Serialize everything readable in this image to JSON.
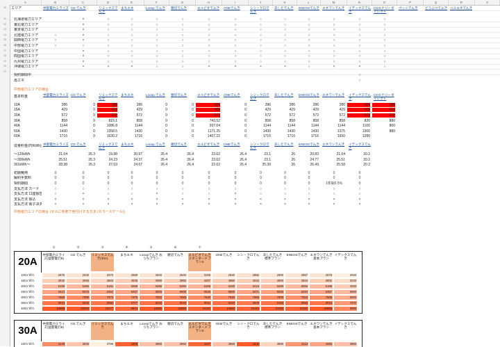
{
  "columns": [
    "A",
    "B",
    "C",
    "D",
    "E",
    "F",
    "G",
    "H",
    "I",
    "J",
    "K",
    "L",
    "M",
    "N",
    "O",
    "P",
    "Q",
    "R",
    "S"
  ],
  "area_section": {
    "headers": [
      "エリア",
      "中部電力ミライズ",
      "CD でんき",
      "リミックスでんき",
      "まちエネ",
      "Looop でんき",
      "親切でんき",
      "エルピオでんき",
      "ONEでんき",
      "シン・クロでんき",
      "あしたでんき",
      "ENEOSでんき",
      "エネワンでんき",
      "イデックスでんき",
      "CDエナジーダイレクト",
      "ペットでんき",
      "どうぶつでんき",
      "ハルエネでんき"
    ],
    "rows": [
      {
        "area": "北海道電力エリア",
        "marks": [
          "",
          "×",
          "○",
          "○",
          "○",
          "○",
          "○",
          "○",
          "○",
          "○",
          "○",
          "○",
          "○",
          "○",
          "",
          "",
          ""
        ]
      },
      {
        "area": "東北電力エリア",
        "marks": [
          "",
          "×",
          "○",
          "○",
          "○",
          "○",
          "○",
          "○",
          "○",
          "○",
          "○",
          "○",
          "○",
          "○",
          "",
          "",
          ""
        ]
      },
      {
        "area": "東京電力エリア",
        "marks": [
          "",
          "×",
          "○",
          "○",
          "○",
          "○",
          "○",
          "○",
          "○",
          "○",
          "○",
          "○",
          "○",
          "○",
          "",
          "",
          ""
        ]
      },
      {
        "area": "北陸電力エリア",
        "marks": [
          "○",
          "×",
          "○",
          "○",
          "○",
          "○",
          "○",
          "○",
          "○",
          "○",
          "○",
          "○",
          "○",
          "○",
          "",
          "",
          ""
        ]
      },
      {
        "area": "関西電力エリア",
        "marks": [
          "○",
          "×",
          "○",
          "○",
          "○",
          "○",
          "○",
          "○",
          "○",
          "○",
          "○",
          "○",
          "○",
          "○",
          "",
          "",
          ""
        ]
      },
      {
        "area": "中部電力エリア",
        "marks": [
          "○",
          "○",
          "○",
          "○",
          "○",
          "○",
          "○",
          "○",
          "○",
          "○",
          "○",
          "○",
          "○",
          "○",
          "",
          "",
          ""
        ]
      },
      {
        "area": "中国電力エリア",
        "marks": [
          "",
          "×",
          "○",
          "○",
          "○",
          "○",
          "○",
          "○",
          "○",
          "○",
          "○",
          "○",
          "○",
          "○",
          "",
          "",
          ""
        ]
      },
      {
        "area": "四国電力エリア",
        "marks": [
          "",
          "×",
          "○",
          "○",
          "○",
          "○",
          "○",
          "○",
          "○",
          "○",
          "○",
          "○",
          "○",
          "○",
          "",
          "",
          ""
        ]
      },
      {
        "area": "九州電力エリア",
        "marks": [
          "",
          "×",
          "○",
          "○",
          "○",
          "○",
          "○",
          "○",
          "○",
          "○",
          "○",
          "○",
          "○",
          "○",
          "",
          "",
          ""
        ]
      },
      {
        "area": "沖縄電力エリア",
        "marks": [
          "",
          "×",
          "×",
          "×",
          "○",
          "○",
          "×",
          "×",
          "×",
          "×",
          "○",
          "×",
          "×",
          "○",
          "",
          "",
          ""
        ]
      }
    ],
    "extra": [
      {
        "label": "契約期間中",
        "mark": "○"
      },
      {
        "label": "再エネ",
        "mark": "○"
      }
    ]
  },
  "basic_fee": {
    "title": "中部電力エリアの場合",
    "label": "基本料金",
    "rows": [
      {
        "amp": "10A",
        "vals": [
          "286",
          "0",
          "286",
          "286",
          "0",
          "0",
          "286",
          "0",
          "286",
          "286",
          "286",
          "286",
          "286",
          "286"
        ],
        "red": [
          2,
          6,
          12,
          13
        ]
      },
      {
        "amp": "15A",
        "vals": [
          "429",
          "0",
          "429",
          "429",
          "0",
          "0",
          "429",
          "0",
          "429",
          "429",
          "429",
          "429",
          "429",
          "429"
        ],
        "red": [
          2,
          6,
          12,
          13
        ]
      },
      {
        "amp": "20A",
        "vals": [
          "572",
          "0",
          "572",
          "572",
          "0",
          "0",
          "572",
          "0",
          "572",
          "572",
          "572",
          "572",
          "572",
          "572"
        ],
        "red": [
          2,
          6,
          12,
          13
        ]
      },
      {
        "amp": "30A",
        "vals": [
          "858",
          "0",
          "815.1",
          "858",
          "0",
          "0",
          "743.52",
          "0",
          "858",
          "858",
          "858",
          "858",
          "820",
          "880"
        ],
        "red": []
      },
      {
        "amp": "40A",
        "vals": [
          "1144",
          "0",
          "1086.8",
          "1144",
          "0",
          "0",
          "937.04",
          "0",
          "1144",
          "1144",
          "1144",
          "1144",
          "1100",
          "800"
        ],
        "red": []
      },
      {
        "amp": "50A",
        "vals": [
          "1430",
          "0",
          "1358.5",
          "1430",
          "0",
          "0",
          "1171.25",
          "0",
          "1430",
          "1430",
          "1430",
          "1375",
          "1000",
          "880"
        ],
        "red": []
      },
      {
        "amp": "60A",
        "vals": [
          "1716",
          "0",
          "1630.2",
          "1716",
          "0",
          "0",
          "1407.22",
          "0",
          "1716",
          "1716",
          "1716",
          "1650",
          "1280",
          ""
        ],
        "red": []
      }
    ]
  },
  "unit_price": {
    "label": "従量料金(円/kWh)",
    "rows": [
      {
        "label": "〜120kWh",
        "vals": [
          "21.04",
          "26.3",
          "19.98",
          "20.97",
          "26.4",
          "26.4",
          "23.62",
          "26.4",
          "23.1",
          "26",
          "20.83",
          "21.04",
          "20.2"
        ]
      },
      {
        "label": "〜300kWh",
        "vals": [
          "25.51",
          "26.3",
          "24.23",
          "24.37",
          "26.4",
          "26.4",
          "23.62",
          "26.4",
          "23.1",
          "26",
          "24.77",
          "25.51",
          "20.2"
        ]
      },
      {
        "label": "301kWh〜",
        "vals": [
          "28.38",
          "26.3",
          "27.03",
          "24.67",
          "26.4",
          "26.4",
          "23.62",
          "26.4",
          "25.39",
          "26",
          "26.49",
          "25.58",
          "20.2"
        ]
      }
    ]
  },
  "misc_rows": [
    {
      "label": "初期費用",
      "vals": [
        "0",
        "0",
        "0",
        "0",
        "0",
        "0",
        "0",
        "0",
        "0",
        "0",
        "0",
        "0",
        "0"
      ]
    },
    {
      "label": "解約手数料",
      "vals": [
        "0",
        "0",
        "0",
        "0",
        "0",
        "0",
        "0",
        "0",
        "0",
        "0",
        "0",
        "0",
        "0"
      ]
    },
    {
      "label": "契約期間",
      "vals": [
        "0",
        "0",
        "0",
        "0",
        "0",
        "0",
        "0",
        "0",
        "0",
        "0",
        "0",
        "1年間0.5%",
        "0"
      ]
    },
    {
      "label": "支払方法 カード",
      "vals": [
        "○",
        "○",
        "○",
        "○",
        "○",
        "○",
        "○",
        "○",
        "○",
        "○",
        "○",
        "○",
        "○"
      ]
    },
    {
      "label": "支払方法 口座振替",
      "vals": [
        "○",
        "×",
        "○",
        "○",
        "×",
        "○",
        "○",
        "×",
        "○",
        "○",
        "○",
        "○",
        "○"
      ]
    },
    {
      "label": "支払方法 振込",
      "vals": [
        "×",
        "×",
        "×",
        "×",
        "×",
        "×",
        "×",
        "×",
        "×",
        "×",
        "×",
        "×",
        "×"
      ]
    },
    {
      "label": "支払方法 電子決済",
      "vals": [
        "×",
        "×",
        "×",
        "×",
        "×",
        "×",
        "×",
        "×",
        "×",
        "×",
        "×",
        "×",
        "×"
      ]
    }
  ],
  "scale_note": "中部電力エリアの場合",
  "scale_note2": "(セルに色数で色付けする方法 (カラースケール))",
  "panel20": {
    "amp": "20A",
    "headers": [
      "中部電力ミライズ(従量電灯B)",
      "CD でんき",
      "リミックスでんき(30A)",
      "まちエネ",
      "Looopでんき おうちプラン",
      "親切でんき",
      "エルピオでんき スタンダードプランS",
      "ONEでんき",
      "シン・クロでんき",
      "あしたでんき 標準プラン",
      "ENEOSでんき",
      "エネワンでんき 基本プラン",
      "イデックスでんき"
    ],
    "numbers": [
      "①",
      "②",
      "③",
      "④",
      "⑤",
      "⑥",
      "⑦"
    ],
    "rows": [
      {
        "label": "100ｋＷｈ",
        "vals": [
          "2676",
          "2630",
          "2570",
          "2669",
          "2640",
          "2640",
          "3159",
          "2640",
          "2882",
          "2600",
          "2657",
          "2676",
          "2020"
        ]
      },
      {
        "label": "150ｋＷｈ",
        "vals": [
          "3932",
          "3945",
          "3583",
          "4049",
          "3960",
          "3960",
          "4287",
          "3960",
          "4042",
          "3900",
          "3834",
          "3932",
          "3030"
        ]
      },
      {
        "label": "200ｋＷｈ",
        "vals": [
          "5198",
          "5260",
          "5151",
          "5058",
          "5280",
          "5280",
          "5468",
          "5280",
          "5216",
          "5200",
          "5056",
          "5198",
          "4040"
        ]
      },
      {
        "label": "250ｋＷｈ",
        "vals": [
          "6413",
          "6575",
          "6362",
          "6267",
          "6600",
          "6600",
          "6649",
          "6600",
          "6371",
          "6500",
          "6294",
          "6467",
          "5050"
        ]
      },
      {
        "label": "300ｋＷｈ",
        "vals": [
          "7668",
          "7890",
          "7574",
          "7475",
          "7920",
          "7920",
          "7830",
          "7920",
          "7566",
          "7800",
          "7533",
          "7668",
          "6060"
        ]
      },
      {
        "label": "350ｋＷｈ",
        "vals": [
          "9010",
          "9205",
          "8950",
          "8707",
          "9240",
          "9240",
          "9011",
          "9240",
          "8808",
          "9100",
          "8856",
          "9010",
          "7070"
        ]
      },
      {
        "label": "400ｋＷｈ",
        "vals": [
          "10659",
          "10520",
          "10277",
          "9942",
          "10560",
          "10560",
          "10192",
          "10560",
          "10153",
          "10400",
          "10182",
          "10659",
          "8080"
        ]
      }
    ]
  },
  "panel30": {
    "amp": "30A",
    "headers": [
      "中部電力ミライズ(従量電灯B)",
      "CD でんき",
      "リミックスでんき",
      "まちエネ",
      "Looopでんき おうちプラン",
      "親切でんき",
      "エルピオでんき スタンダードプランS",
      "ONEでんき",
      "シン・クロでんき",
      "あしたでんき 標準プラン",
      "ENEOSでんき",
      "エネワンでんき 基本プラン",
      "イデックスでんき"
    ],
    "rows": [
      {
        "label": "150ｋＷｈ",
        "vals": [
          "4148",
          "3945",
          "3796",
          "4308",
          "3960",
          "3960",
          "4287",
          "3960",
          "4332",
          "3900",
          "4113",
          "4065",
          "3960"
        ]
      }
    ]
  }
}
